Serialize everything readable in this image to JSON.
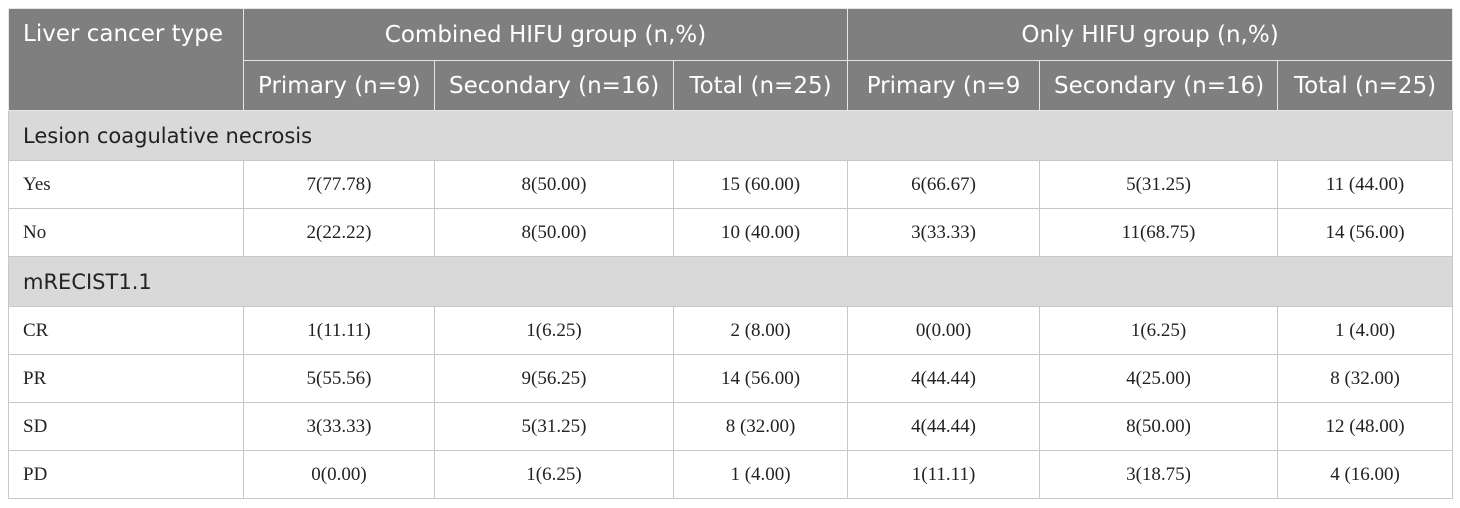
{
  "table": {
    "header": {
      "corner": "Liver cancer type",
      "groups": [
        "Combined HIFU group (n,%)",
        "Only HIFU group (n,%)"
      ],
      "columns": [
        "Primary (n=9)",
        "Secondary (n=16)",
        "Total (n=25)",
        "Primary (n=9",
        "Secondary (n=16)",
        "Total (n=25)"
      ]
    },
    "sections": [
      {
        "title": "Lesion coagulative necrosis",
        "rows": [
          {
            "label": "Yes",
            "cells": [
              "7(77.78)",
              "8(50.00)",
              "15 (60.00)",
              "6(66.67)",
              "5(31.25)",
              "11 (44.00)"
            ]
          },
          {
            "label": "No",
            "cells": [
              "2(22.22)",
              "8(50.00)",
              "10 (40.00)",
              "3(33.33)",
              "11(68.75)",
              "14 (56.00)"
            ]
          }
        ]
      },
      {
        "title": "mRECIST1.1",
        "rows": [
          {
            "label": "CR",
            "cells": [
              "1(11.11)",
              "1(6.25)",
              "2 (8.00)",
              "0(0.00)",
              "1(6.25)",
              "1 (4.00)"
            ]
          },
          {
            "label": "PR",
            "cells": [
              "5(55.56)",
              "9(56.25)",
              "14 (56.00)",
              "4(44.44)",
              "4(25.00)",
              "8 (32.00)"
            ]
          },
          {
            "label": "SD",
            "cells": [
              "3(33.33)",
              "5(31.25)",
              "8 (32.00)",
              "4(44.44)",
              "8(50.00)",
              "12 (48.00)"
            ]
          },
          {
            "label": "PD",
            "cells": [
              "0(0.00)",
              "1(6.25)",
              "1 (4.00)",
              "1(11.11)",
              "3(18.75)",
              "4 (16.00)"
            ]
          }
        ]
      }
    ]
  }
}
